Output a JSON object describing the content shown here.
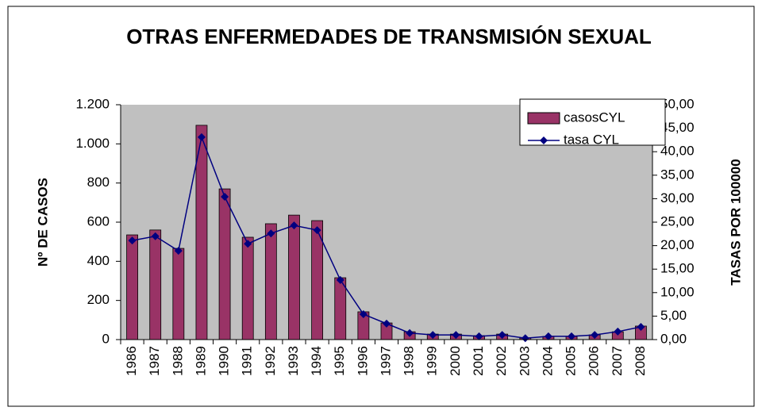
{
  "chart_data": {
    "type": "bar_line",
    "title": "OTRAS ENFERMEDADES DE TRANSMISIÓN SEXUAL",
    "y_label": "Nº DE CASOS",
    "y2_label": "TASAS POR 100000",
    "categories": [
      "1986",
      "1987",
      "1988",
      "1989",
      "1990",
      "1991",
      "1992",
      "1993",
      "1994",
      "1995",
      "1996",
      "1997",
      "1998",
      "1999",
      "2000",
      "2001",
      "2002",
      "2003",
      "2004",
      "2005",
      "2006",
      "2007",
      "2008"
    ],
    "series": [
      {
        "name": "casosCYL",
        "kind": "bar",
        "color": "#993366",
        "values": [
          535,
          560,
          466,
          1095,
          770,
          523,
          592,
          636,
          608,
          316,
          142,
          85,
          40,
          28,
          28,
          20,
          28,
          8,
          16,
          16,
          24,
          40,
          69
        ]
      },
      {
        "name": "tasa CYL",
        "kind": "line",
        "axis": "y2",
        "color": "#000080",
        "values": [
          21.1,
          22.0,
          18.9,
          43.1,
          30.4,
          20.4,
          22.6,
          24.3,
          23.3,
          12.7,
          5.4,
          3.4,
          1.4,
          1.0,
          1.0,
          0.7,
          1.0,
          0.3,
          0.7,
          0.7,
          1.0,
          1.7,
          2.7
        ]
      }
    ],
    "ylim": [
      0,
      1200
    ],
    "yticks": [
      0,
      200,
      400,
      600,
      800,
      {
        "value": 1000,
        "label": "1.000"
      },
      {
        "value": 1200,
        "label": "1.200"
      }
    ],
    "y2lim": [
      0,
      50
    ],
    "y2ticks": [
      {
        "value": 0,
        "label": "0,00"
      },
      {
        "value": 5,
        "label": "5,00"
      },
      {
        "value": 10,
        "label": "10,00"
      },
      {
        "value": 15,
        "label": "15,00"
      },
      {
        "value": 20,
        "label": "20,00"
      },
      {
        "value": 25,
        "label": "25,00"
      },
      {
        "value": 30,
        "label": "30,00"
      },
      {
        "value": 35,
        "label": "35,00"
      },
      {
        "value": 40,
        "label": "40,00"
      },
      {
        "value": 45,
        "label": "45,00"
      },
      {
        "value": 50,
        "label": "50,00"
      }
    ]
  }
}
